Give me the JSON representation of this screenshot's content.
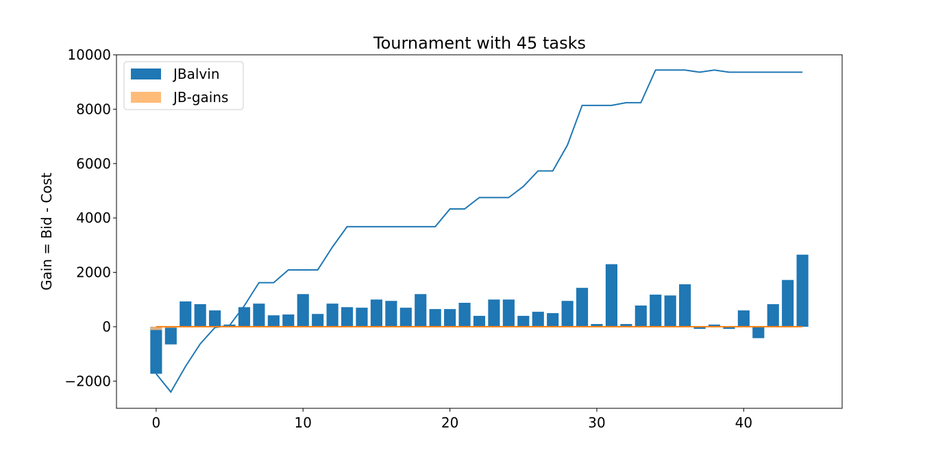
{
  "chart_data": {
    "type": "bar",
    "title": "Tournament with 45 tasks",
    "xlabel": "",
    "ylabel": "Gain = Bid - Cost",
    "xlim": [
      -2.7,
      46.7
    ],
    "ylim": [
      -3000,
      10000
    ],
    "xticks": [
      0,
      10,
      20,
      30,
      40
    ],
    "yticks": [
      -2000,
      0,
      2000,
      4000,
      6000,
      8000,
      10000
    ],
    "ytick_labels": [
      "−2000",
      "0",
      "2000",
      "4000",
      "6000",
      "8000",
      "10000"
    ],
    "legend_position": "top-left",
    "x": [
      0,
      1,
      2,
      3,
      4,
      5,
      6,
      7,
      8,
      9,
      10,
      11,
      12,
      13,
      14,
      15,
      16,
      17,
      18,
      19,
      20,
      21,
      22,
      23,
      24,
      25,
      26,
      27,
      28,
      29,
      30,
      31,
      32,
      33,
      34,
      35,
      36,
      37,
      38,
      39,
      40,
      41,
      42,
      43,
      44
    ],
    "series": [
      {
        "name": "JBalvin",
        "kind": "bar",
        "color": "#1f77b4",
        "values": [
          -1730,
          -650,
          930,
          830,
          600,
          80,
          720,
          850,
          420,
          450,
          1200,
          470,
          850,
          720,
          700,
          1000,
          950,
          700,
          1200,
          650,
          650,
          880,
          400,
          1000,
          1000,
          400,
          550,
          500,
          950,
          1430,
          100,
          2300,
          100,
          780,
          1180,
          1150,
          1560,
          -80,
          80,
          -80,
          600,
          -420,
          830,
          1720,
          2650
        ]
      },
      {
        "name": "JB-gains",
        "kind": "bar",
        "color": "#ffbb78",
        "values": [
          -120,
          -40,
          0,
          0,
          0,
          0,
          0,
          0,
          0,
          0,
          0,
          0,
          0,
          0,
          0,
          0,
          0,
          0,
          0,
          0,
          0,
          0,
          0,
          0,
          0,
          0,
          0,
          0,
          0,
          0,
          0,
          0,
          0,
          0,
          0,
          0,
          0,
          0,
          0,
          0,
          0,
          0,
          0,
          0,
          0
        ]
      },
      {
        "kind": "line",
        "color": "#1f77b4",
        "values": [
          -1730,
          -2400,
          -1460,
          -630,
          -30,
          50,
          770,
          1620,
          1620,
          2090,
          2090,
          2090,
          2930,
          3680,
          3680,
          3680,
          3680,
          3680,
          3680,
          3680,
          4330,
          4330,
          4750,
          4750,
          4750,
          5160,
          5730,
          5730,
          6680,
          8140,
          8140,
          8140,
          8240,
          8240,
          9440,
          9440,
          9440,
          9360,
          9440,
          9360,
          9360,
          9360,
          9360,
          9360,
          9360
        ]
      },
      {
        "kind": "line",
        "color": "#ff7f0e",
        "values": [
          0,
          0,
          0,
          0,
          0,
          0,
          0,
          0,
          0,
          0,
          0,
          0,
          0,
          0,
          0,
          0,
          0,
          0,
          0,
          0,
          0,
          0,
          0,
          0,
          0,
          0,
          0,
          0,
          0,
          0,
          0,
          0,
          0,
          0,
          0,
          0,
          0,
          0,
          0,
          0,
          0,
          0,
          0,
          0,
          0
        ]
      }
    ]
  }
}
